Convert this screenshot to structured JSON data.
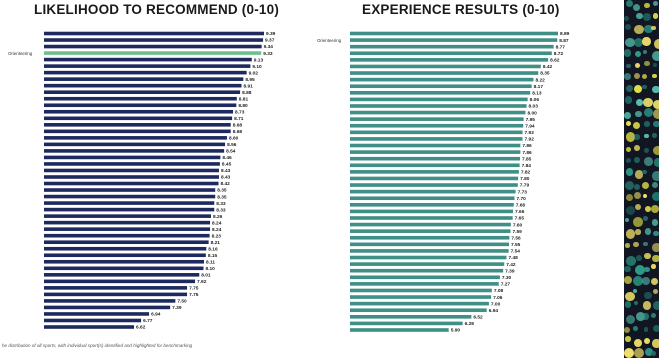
{
  "chart_data": [
    {
      "type": "bar",
      "orientation": "horizontal",
      "title": "LIKELIHOOD TO RECOMMEND (0-10)",
      "bar_color": "#1e2a5e",
      "highlight_color": "#6fbf8e",
      "highlight_label": "Orienteering",
      "highlight_index": 3,
      "values": [
        9.39,
        9.37,
        9.34,
        9.33,
        9.13,
        9.1,
        9.02,
        8.95,
        8.91,
        8.88,
        8.81,
        8.8,
        8.73,
        8.71,
        8.68,
        8.68,
        8.6,
        8.56,
        8.54,
        8.46,
        8.45,
        8.43,
        8.43,
        8.42,
        8.35,
        8.35,
        8.33,
        8.33,
        8.26,
        8.24,
        8.24,
        8.23,
        8.21,
        8.16,
        8.15,
        8.11,
        8.1,
        8.01,
        7.92,
        7.75,
        7.75,
        7.5,
        7.39,
        6.94,
        6.77,
        6.62
      ],
      "labels": [
        "9.39",
        "9.37",
        "9.34",
        "9.33",
        "9.13",
        "9.10",
        "9.02",
        "8.95",
        "8.91",
        "8.88",
        "8.81",
        "8.80",
        "8.73",
        "8.71",
        "8.68",
        "8.68",
        "8.60",
        "8.56",
        "8.54",
        "8.46",
        "8.45",
        "8.43",
        "8.43",
        "8.42",
        "8.35",
        "8.35",
        "8.33",
        "8.33",
        "8.26",
        "8.24",
        "8.24",
        "8.23",
        "8.21",
        "8.16",
        "8.15",
        "8.11",
        "8.10",
        "8.01",
        "7.92",
        "7.75",
        "7.75",
        "7.50",
        "7.39",
        "6.94",
        "6.77",
        "6.62"
      ]
    },
    {
      "type": "bar",
      "orientation": "horizontal",
      "title": "EXPERIENCE RESULTS (0-10)",
      "bar_color": "#3f8f86",
      "highlight_color": "#3f8f86",
      "highlight_label": "Orienteering",
      "highlight_index": 1,
      "values": [
        8.89,
        8.87,
        8.77,
        8.72,
        8.62,
        8.42,
        8.35,
        8.22,
        8.17,
        8.13,
        8.06,
        8.03,
        8.0,
        7.95,
        7.94,
        7.92,
        7.92,
        7.86,
        7.86,
        7.85,
        7.84,
        7.82,
        7.8,
        7.79,
        7.73,
        7.7,
        7.68,
        7.66,
        7.65,
        7.6,
        7.59,
        7.56,
        7.55,
        7.54,
        7.48,
        7.42,
        7.39,
        7.3,
        7.27,
        7.08,
        7.06,
        7.0,
        6.94,
        6.52,
        6.28,
        5.9
      ],
      "labels": [
        "8.89",
        "8.87",
        "8.77",
        "8.72",
        "8.62",
        "8.42",
        "8.35",
        "8.22",
        "8.17",
        "8.13",
        "8.06",
        "8.03",
        "8.00",
        "7.95",
        "7.94",
        "7.92",
        "7.92",
        "7.86",
        "7.86",
        "7.85",
        "7.84",
        "7.82",
        "7.80",
        "7.79",
        "7.73",
        "7.70",
        "7.68",
        "7.66",
        "7.65",
        "7.60",
        "7.59",
        "7.56",
        "7.55",
        "7.54",
        "7.48",
        "7.42",
        "7.39",
        "7.30",
        "7.27",
        "7.08",
        "7.06",
        "7.00",
        "6.94",
        "6.52",
        "6.28",
        "5.90"
      ]
    }
  ],
  "footnote": "he distribution of all sports, with individual sport(s) identified and highlighted for benchmarking",
  "decoration": {
    "background": "#121622",
    "dot_colors": [
      "#e9e84a",
      "#2e9c8c",
      "#57c0b0",
      "#f2e26a",
      "#1f6f6a"
    ]
  }
}
